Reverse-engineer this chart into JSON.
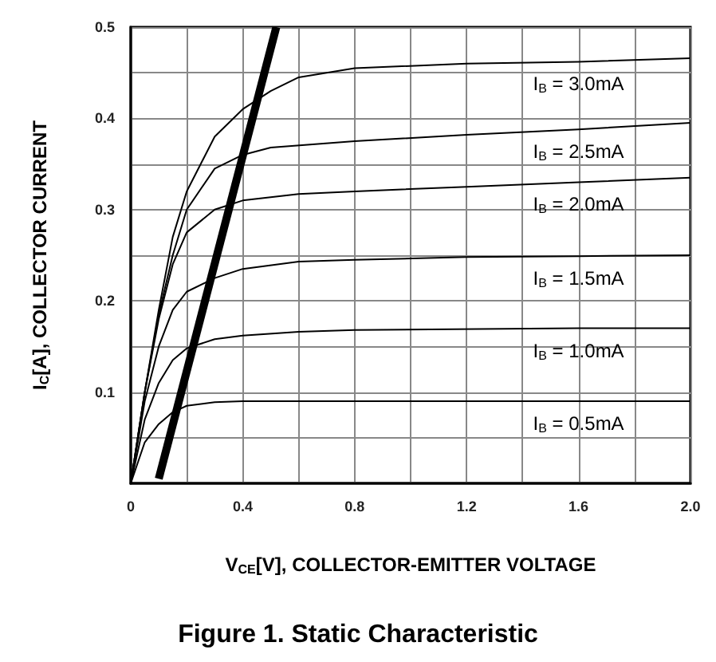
{
  "chart_data": {
    "type": "line",
    "title": "Figure 1. Static Characteristic",
    "xlabel": "V$_{CE}$[V], COLLECTOR-EMITTER VOLTAGE",
    "ylabel": "I$_{C}$[A], COLLECTOR CURRENT",
    "xlim": [
      0,
      2
    ],
    "ylim": [
      0,
      0.5
    ],
    "xticks": [
      0,
      {
        "value": 0.2,
        "label": null
      },
      0.4,
      {
        "value": 0.6,
        "label": null
      },
      0.8,
      {
        "value": 1.0,
        "label": null
      },
      1.2,
      {
        "value": 1.4,
        "label": null
      },
      1.6,
      {
        "value": 1.8,
        "label": null
      },
      {
        "value": 2.0,
        "label": "2.0"
      }
    ],
    "yticks": [
      {
        "value": 0,
        "label": null
      },
      {
        "value": 0.05,
        "label": null
      },
      0.1,
      {
        "value": 0.15,
        "label": null
      },
      0.2,
      {
        "value": 0.25,
        "label": null
      },
      0.3,
      {
        "value": 0.35,
        "label": null
      },
      0.4,
      {
        "value": 0.45,
        "label": null
      },
      0.5
    ],
    "grid": true,
    "legend": false,
    "marker": "none",
    "line_style": "solid",
    "series": [
      {
        "name": "I$_{B}$ = 3.0mA",
        "color": "#000000",
        "x": [
          0,
          0.05,
          0.1,
          0.15,
          0.2,
          0.3,
          0.4,
          0.5,
          0.6,
          0.8,
          1.2,
          1.6,
          2.0
        ],
        "values": [
          0,
          0.1,
          0.19,
          0.27,
          0.32,
          0.38,
          0.41,
          0.43,
          0.445,
          0.455,
          0.46,
          0.462,
          0.466
        ]
      },
      {
        "name": "I$_{B}$ = 2.5mA",
        "color": "#000000",
        "x": [
          0,
          0.05,
          0.1,
          0.15,
          0.2,
          0.3,
          0.4,
          0.5,
          0.8,
          1.2,
          1.6,
          2.0
        ],
        "values": [
          0,
          0.1,
          0.185,
          0.25,
          0.3,
          0.345,
          0.36,
          0.368,
          0.375,
          0.382,
          0.388,
          0.395
        ]
      },
      {
        "name": "I$_{B}$ = 2.0mA",
        "color": "#000000",
        "x": [
          0,
          0.05,
          0.1,
          0.15,
          0.2,
          0.3,
          0.4,
          0.6,
          0.8,
          1.2,
          1.6,
          2.0
        ],
        "values": [
          0,
          0.1,
          0.18,
          0.24,
          0.275,
          0.3,
          0.31,
          0.317,
          0.32,
          0.325,
          0.33,
          0.335
        ]
      },
      {
        "name": "I$_{B}$ = 1.5mA",
        "color": "#000000",
        "x": [
          0,
          0.05,
          0.1,
          0.15,
          0.2,
          0.3,
          0.4,
          0.6,
          0.8,
          1.2,
          1.6,
          2.0
        ],
        "values": [
          0,
          0.09,
          0.15,
          0.19,
          0.21,
          0.225,
          0.235,
          0.243,
          0.245,
          0.248,
          0.249,
          0.25
        ]
      },
      {
        "name": "I$_{B}$ = 1.0mA",
        "color": "#000000",
        "x": [
          0,
          0.05,
          0.1,
          0.15,
          0.2,
          0.3,
          0.4,
          0.6,
          0.8,
          1.6,
          2.0
        ],
        "values": [
          0,
          0.07,
          0.11,
          0.135,
          0.148,
          0.158,
          0.162,
          0.166,
          0.168,
          0.17,
          0.17
        ]
      },
      {
        "name": "I$_{B}$ = 0.5mA",
        "color": "#000000",
        "x": [
          0,
          0.05,
          0.1,
          0.15,
          0.2,
          0.3,
          0.4,
          0.8,
          1.6,
          2.0
        ],
        "values": [
          0,
          0.045,
          0.065,
          0.078,
          0.085,
          0.089,
          0.09,
          0.09,
          0.09,
          0.09
        ]
      },
      {
        "color": "#000000",
        "x": [
          0.1,
          0.52
        ],
        "values": [
          0.005,
          0.5
        ]
      }
    ]
  }
}
